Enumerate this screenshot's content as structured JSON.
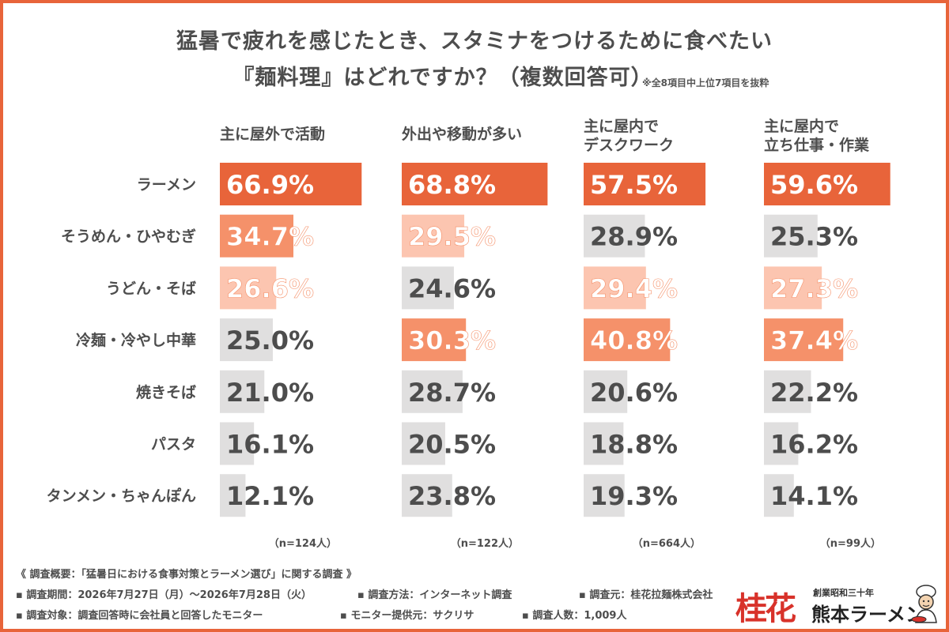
{
  "title_line1": "猛暑で疲れを感じたとき、スタミナをつけるために食べたい",
  "title_line2": "『麺料理』はどれですか？（複数回答可）",
  "note": "※全8項目中上位7項目を抜粋",
  "colors": {
    "rank1": "#e8643a",
    "rank2": "#f5916a",
    "rank3": "#fcc5b0",
    "other": "#e0dfdf",
    "text_dark": "#4d4d4d",
    "text_light": "#ffffff"
  },
  "chart_data": {
    "type": "bar",
    "orientation": "horizontal",
    "unit": "%",
    "categories": [
      "ラーメン",
      "そうめん・ひやむぎ",
      "うどん・そば",
      "冷麺・冷やし中華",
      "焼きそば",
      "パスタ",
      "タンメン・ちゃんぽん"
    ],
    "series": [
      {
        "name": "主に屋外で活動",
        "name_lines": [
          "主に屋外で活動"
        ],
        "n": "（n=124人）",
        "values": [
          66.9,
          34.7,
          26.6,
          25.0,
          21.0,
          16.1,
          12.1
        ],
        "labels": [
          "66.9%",
          "34.7%",
          "26.6%",
          "25.0%",
          "21.0%",
          "16.1%",
          "12.1%"
        ],
        "ranks": [
          1,
          2,
          3,
          0,
          0,
          0,
          0
        ]
      },
      {
        "name": "外出や移動が多い",
        "name_lines": [
          "外出や移動が多い"
        ],
        "n": "（n=122人）",
        "values": [
          68.8,
          29.5,
          24.6,
          30.3,
          28.7,
          20.5,
          23.8
        ],
        "labels": [
          "68.8%",
          "29.5%",
          "24.6%",
          "30.3%",
          "28.7%",
          "20.5%",
          "23.8%"
        ],
        "ranks": [
          1,
          3,
          0,
          2,
          0,
          0,
          0
        ]
      },
      {
        "name": "主に屋内でデスクワーク",
        "name_lines": [
          "主に屋内で",
          "デスクワーク"
        ],
        "n": "（n=664人）",
        "values": [
          57.5,
          28.9,
          29.4,
          40.8,
          20.6,
          18.8,
          19.3
        ],
        "labels": [
          "57.5%",
          "28.9%",
          "29.4%",
          "40.8%",
          "20.6%",
          "18.8%",
          "19.3%"
        ],
        "ranks": [
          1,
          0,
          3,
          2,
          0,
          0,
          0
        ]
      },
      {
        "name": "主に屋内で立ち仕事・作業",
        "name_lines": [
          "主に屋内で",
          "立ち仕事・作業"
        ],
        "n": "（n=99人）",
        "values": [
          59.6,
          25.3,
          27.3,
          37.4,
          22.2,
          16.2,
          14.1
        ],
        "labels": [
          "59.6%",
          "25.3%",
          "27.3%",
          "37.4%",
          "22.2%",
          "16.2%",
          "14.1%"
        ],
        "ranks": [
          1,
          0,
          3,
          2,
          0,
          0,
          0
        ]
      }
    ]
  },
  "footer": {
    "summary": "《 調査概要：「猛暑日における食事対策とラーメン選び」に関する調査 》",
    "period": "▪ 調査期間：2026年7月27日（月）〜2026年7月28日（火）",
    "method": "▪ 調査方法：インターネット調査",
    "source": "▪ 調査元：桂花拉麺株式会社",
    "target": "▪ 調査対象：調査回答時に会社員と回答したモニター",
    "provider": "▪ モニター提供元：サクリサ",
    "count": "▪ 調査人数：1,009人"
  },
  "logo": {
    "kanji": "桂花",
    "sub": "創業昭和三十年",
    "name": "熊本ラーメン",
    "mascot_icon": "chef-mascot-icon"
  }
}
